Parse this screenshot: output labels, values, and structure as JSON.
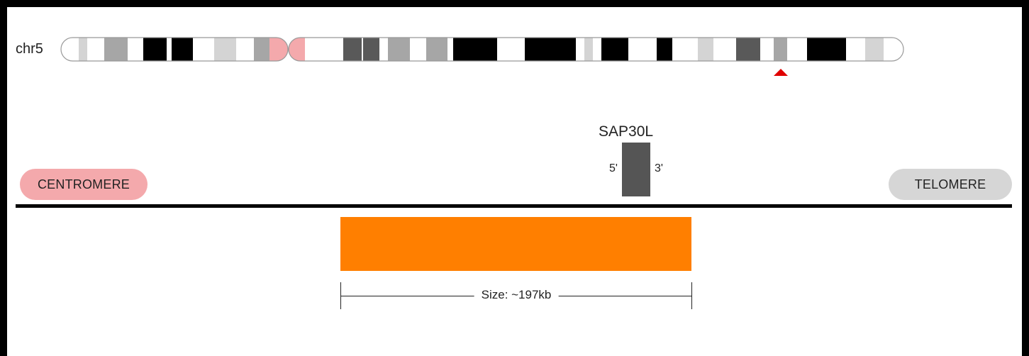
{
  "chromosome": {
    "label": "chr5",
    "colors": {
      "outline": "#999999",
      "centromere": "#f4a9ac",
      "marker": "#e00000",
      "gneg": "#ffffff",
      "gpos25": "#d4d4d4",
      "gpos50": "#a6a6a6",
      "gpos75": "#595959",
      "gpos100": "#000000"
    },
    "band_stains": [
      "gneg",
      "gpos25",
      "gneg",
      "gpos50",
      "gneg",
      "gpos100",
      "gpos100",
      "gneg",
      "gpos25",
      "gneg",
      "gpos50",
      "centromere",
      "centromere",
      "gneg",
      "gpos75",
      "gpos75",
      "gneg",
      "gpos50",
      "gneg",
      "gpos50",
      "gneg",
      "gpos100",
      "gneg",
      "gpos100",
      "gpos100",
      "gneg",
      "gpos25",
      "gneg",
      "gpos100",
      "gneg",
      "gpos100",
      "gneg",
      "gpos25",
      "gneg",
      "gpos75",
      "gneg",
      "gpos50",
      "gneg",
      "gpos100",
      "gneg",
      "gpos25"
    ]
  },
  "gene": {
    "name": "SAP30L",
    "five_prime": "5'",
    "three_prime": "3'",
    "color": "#555555"
  },
  "centromere_label": "CENTROMERE",
  "telomere_label": "TELOMERE",
  "region": {
    "color": "#ff7f00",
    "size_label": "Size: ~197kb"
  }
}
